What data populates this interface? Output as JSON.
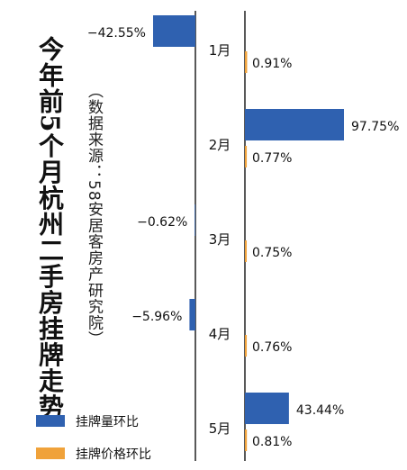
{
  "title": "今年前5个月杭州二手房挂牌走势",
  "source_note": "（数据来源：58安居客房产研究院）",
  "colors": {
    "listing_volume": "#2f61b0",
    "listing_price": "#f0a23a",
    "axis": "#222222"
  },
  "chart_data": {
    "type": "bar",
    "categories": [
      "1月",
      "2月",
      "3月",
      "4月",
      "5月"
    ],
    "series": [
      {
        "name": "挂牌量环比",
        "values": [
          -42.55,
          97.75,
          -0.62,
          -5.96,
          43.44
        ],
        "labels": [
          "−42.55%",
          "97.75%",
          "−0.62%",
          "−5.96%",
          "43.44%"
        ]
      },
      {
        "name": "挂牌价格环比",
        "values": [
          0.91,
          0.77,
          0.75,
          0.76,
          0.81
        ],
        "labels": [
          "0.91%",
          "0.77%",
          "0.75%",
          "0.76%",
          "0.81%"
        ]
      }
    ],
    "legend_position": "bottom-left"
  }
}
